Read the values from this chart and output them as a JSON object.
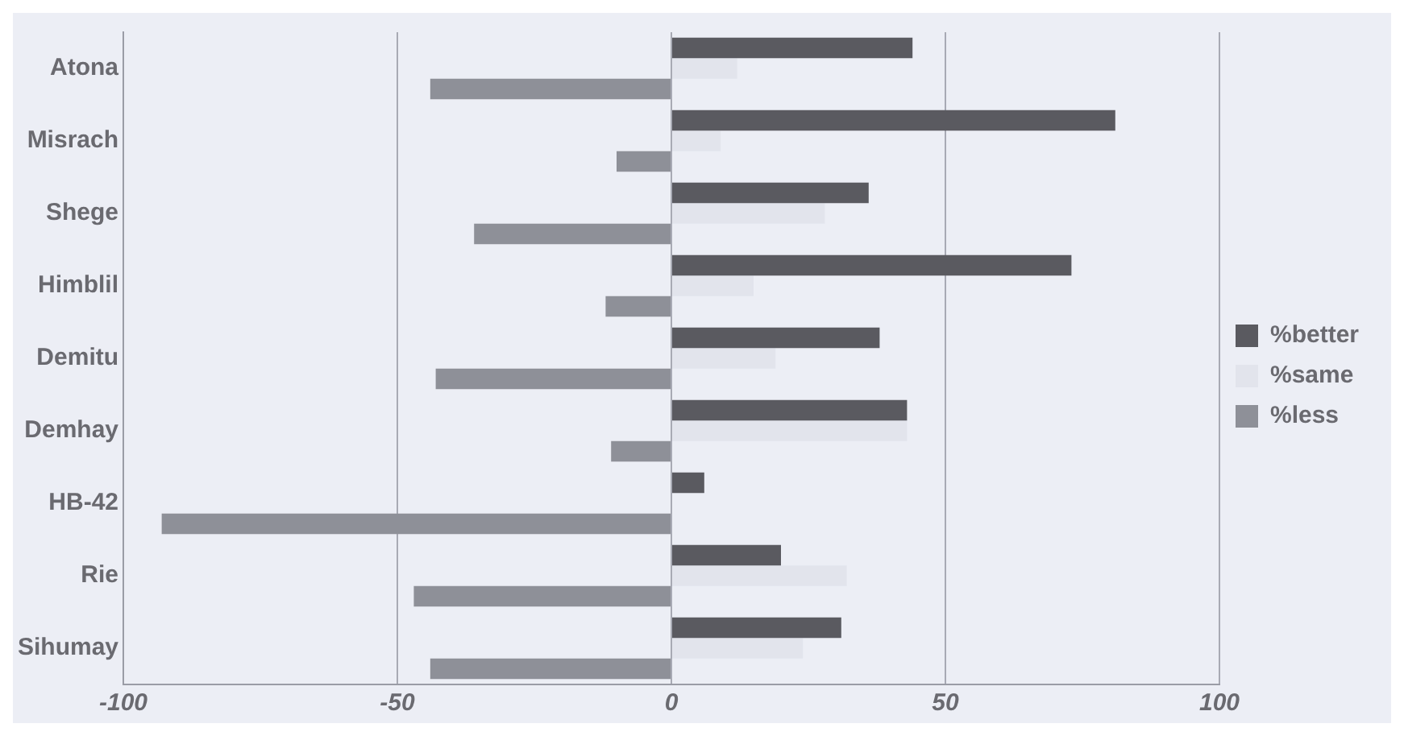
{
  "chart_data": {
    "type": "bar",
    "orientation": "horizontal",
    "categories": [
      "Atona",
      "Misrach",
      "Shege",
      "Himblil",
      "Demitu",
      "Demhay",
      "HB-42",
      "Rie",
      "Sihumay"
    ],
    "series": [
      {
        "name": "%better",
        "color": "#5a5a60",
        "values": [
          44,
          81,
          36,
          73,
          38,
          43,
          6,
          20,
          31
        ]
      },
      {
        "name": "%same",
        "color": "#e2e4ec",
        "values": [
          12,
          9,
          28,
          15,
          19,
          43,
          0,
          32,
          24
        ]
      },
      {
        "name": "%less",
        "color": "#8e9098",
        "values": [
          -44,
          -10,
          -36,
          -12,
          -43,
          -11,
          -93,
          -47,
          -44
        ]
      }
    ],
    "xlim": [
      -100,
      100
    ],
    "xticks": [
      -100,
      -50,
      0,
      50,
      100
    ],
    "grid": "x",
    "legend": "right"
  }
}
